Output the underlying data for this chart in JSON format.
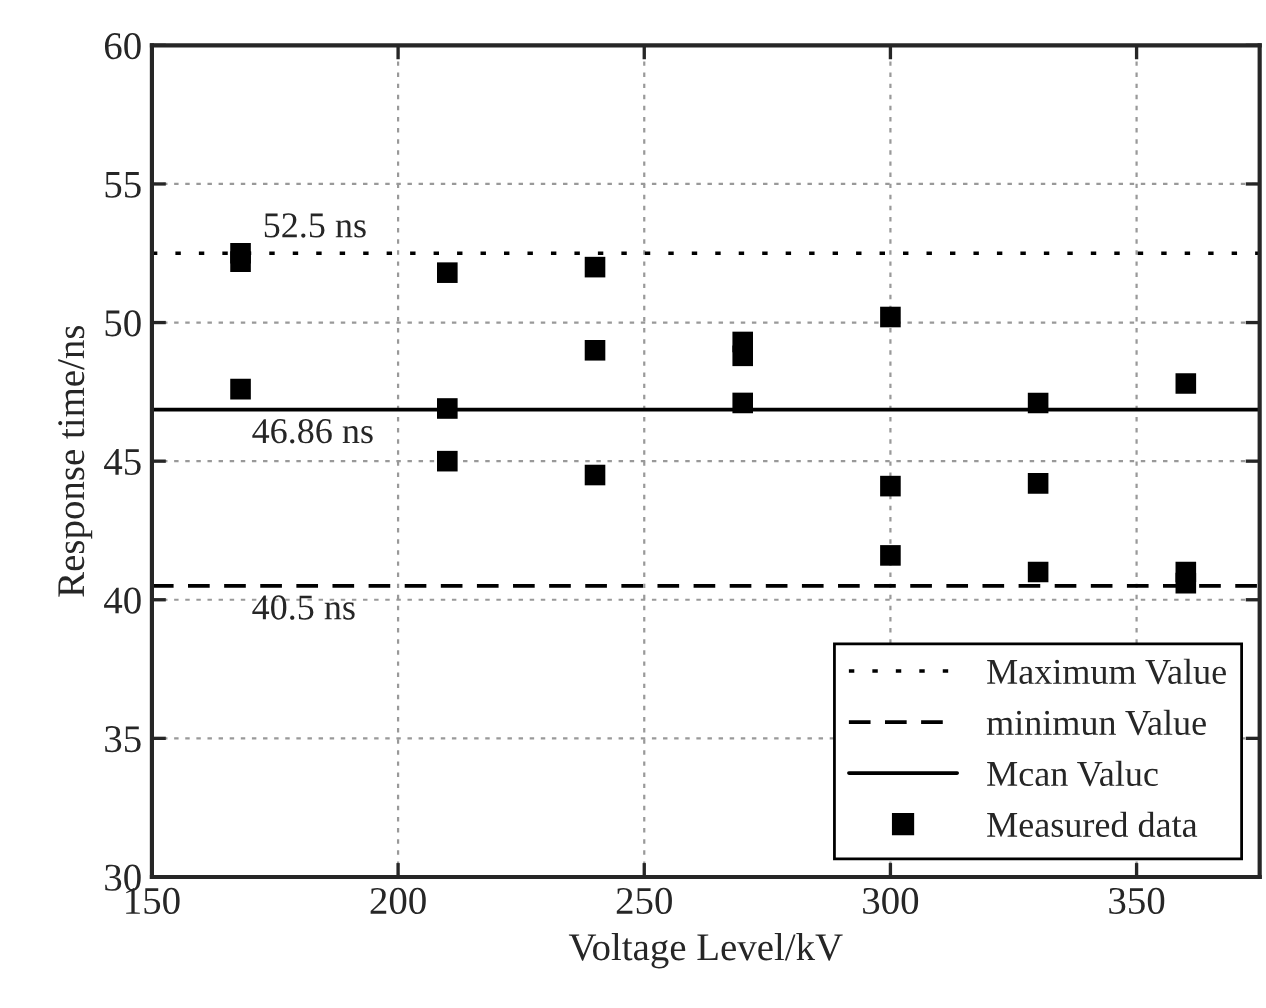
{
  "chart_data": {
    "type": "scatter",
    "xlabel": "Voltage Level/kV",
    "ylabel": "Response time/ns",
    "xlim": [
      150,
      375
    ],
    "xticks": [
      150,
      200,
      250,
      300,
      350
    ],
    "ylim": [
      30,
      60
    ],
    "yticks": [
      30,
      35,
      40,
      45,
      50,
      55,
      60
    ],
    "grid": true,
    "legend": "bottom right",
    "marker": "square",
    "series": [
      {
        "name": "Measured data",
        "color": "#000000",
        "x": [
          168,
          168,
          168,
          210,
          210,
          210,
          240,
          240,
          240,
          270,
          270,
          270,
          300,
          300,
          300,
          330,
          330,
          330,
          360,
          360,
          360
        ],
        "values": [
          52.5,
          52.2,
          47.6,
          51.8,
          46.9,
          45.0,
          52.0,
          49.0,
          44.5,
          49.3,
          48.8,
          47.1,
          50.2,
          44.1,
          41.6,
          47.1,
          44.2,
          41.0,
          47.8,
          41.0,
          40.6
        ]
      }
    ],
    "ref_lines": [
      {
        "axis": "y",
        "value": 52.5,
        "label": "Maximum Value",
        "color": "#000000",
        "line_style": "dotted"
      },
      {
        "axis": "y",
        "value": 40.5,
        "label": "minimun Value",
        "color": "#000000",
        "line_style": "dashed"
      },
      {
        "axis": "y",
        "value": 46.86,
        "label": "Mcan Valuc",
        "color": "#000000",
        "line_style": "solid"
      }
    ],
    "annotations": [
      "52.5 ns",
      "40.5 ns",
      "46.86 ns"
    ]
  }
}
